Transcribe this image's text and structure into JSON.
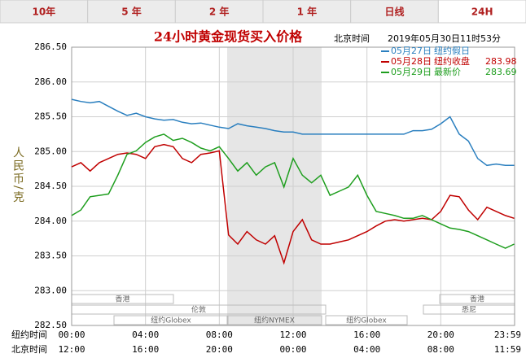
{
  "tabs": [
    "10年",
    "5 年",
    "2 年",
    "1 年",
    "日线",
    "24H"
  ],
  "chart_data": {
    "type": "line",
    "title": "24小时黄金现货买入价格",
    "timestamp_label": "北京时间",
    "timestamp": "2019年05月30日11时53分",
    "y_label": "人民币/克",
    "x_axis_labels": [
      "纽约时间",
      "北京时间"
    ],
    "xlim": [
      0,
      24
    ],
    "xticks": [
      {
        "value": 0,
        "label": "00:00"
      },
      {
        "value": 4,
        "label": "04:00"
      },
      {
        "value": 8,
        "label": "08:00"
      },
      {
        "value": 12,
        "label": "12:00"
      },
      {
        "value": 16,
        "label": "16:00"
      },
      {
        "value": 20,
        "label": "20:00"
      },
      {
        "value": 23.98,
        "label": "23:59"
      }
    ],
    "xtick_labels_beijing": [
      "12:00",
      "16:00",
      "20:00",
      "00:00",
      "04:00",
      "08:00",
      "11:59"
    ],
    "ylim": [
      282.5,
      286.5
    ],
    "yticks": [
      {
        "value": 282.5,
        "label": "282.50"
      },
      {
        "value": 283,
        "label": "283.00"
      },
      {
        "value": 283.5,
        "label": "283.50"
      },
      {
        "value": 284,
        "label": "284.00"
      },
      {
        "value": 284.5,
        "label": "284.50"
      },
      {
        "value": 285,
        "label": "285.00"
      },
      {
        "value": 285.5,
        "label": "285.50"
      },
      {
        "value": 286,
        "label": "286.00"
      },
      {
        "value": 286.5,
        "label": "286.50"
      }
    ],
    "grid": true,
    "session_labels": [
      "香港",
      "伦敦",
      "纽约Globex",
      "纽约NYMEX",
      "纽约Globex",
      "香港",
      "悉尼"
    ],
    "x": [
      0,
      0.5,
      1,
      1.5,
      2,
      2.5,
      3,
      3.5,
      4,
      4.5,
      5,
      5.5,
      6,
      6.5,
      7,
      7.5,
      8,
      8.5,
      9,
      9.5,
      10,
      10.5,
      11,
      11.5,
      12,
      12.5,
      13,
      13.5,
      14,
      14.5,
      15,
      15.5,
      16,
      16.5,
      17,
      17.5,
      18,
      18.5,
      19,
      19.5,
      20,
      20.5,
      21,
      21.5,
      22,
      22.5,
      23,
      23.5,
      23.98
    ],
    "series": [
      {
        "name": "05月27日",
        "note": "纽约假日",
        "color": "#2a7fbf",
        "values": [
          285.75,
          285.72,
          285.7,
          285.72,
          285.65,
          285.58,
          285.52,
          285.55,
          285.5,
          285.47,
          285.45,
          285.46,
          285.42,
          285.4,
          285.41,
          285.38,
          285.35,
          285.33,
          285.4,
          285.37,
          285.35,
          285.33,
          285.3,
          285.28,
          285.28,
          285.25,
          285.25,
          285.25,
          285.25,
          285.25,
          285.25,
          285.25,
          285.25,
          285.25,
          285.25,
          285.25,
          285.25,
          285.3,
          285.3,
          285.32,
          285.4,
          285.5,
          285.25,
          285.15,
          284.9,
          284.8,
          284.82,
          284.8,
          284.8
        ]
      },
      {
        "name": "05月28日",
        "note": "纽约收盘",
        "price": 283.98,
        "color": "#c00000",
        "values": [
          284.78,
          284.84,
          284.72,
          284.84,
          284.9,
          284.96,
          284.98,
          284.96,
          284.9,
          285.07,
          285.1,
          285.07,
          284.9,
          284.84,
          284.96,
          284.98,
          285.01,
          283.8,
          283.67,
          283.85,
          283.73,
          283.67,
          283.79,
          283.4,
          283.85,
          284.02,
          283.73,
          283.67,
          283.67,
          283.7,
          283.73,
          283.79,
          283.85,
          283.93,
          284.0,
          284.02,
          284.0,
          284.02,
          284.04,
          284.02,
          284.14,
          284.37,
          284.35,
          284.16,
          284.02,
          284.2,
          284.14,
          284.08,
          284.04
        ]
      },
      {
        "name": "05月29日",
        "note": "最新价",
        "price": 283.69,
        "color": "#1e9e1e",
        "values": [
          284.08,
          284.16,
          284.35,
          284.37,
          284.39,
          284.66,
          284.96,
          285.01,
          285.13,
          285.21,
          285.25,
          285.16,
          285.19,
          285.13,
          285.05,
          285.01,
          285.07,
          284.9,
          284.72,
          284.84,
          284.66,
          284.78,
          284.84,
          284.49,
          284.9,
          284.66,
          284.55,
          284.66,
          284.37,
          284.43,
          284.49,
          284.66,
          284.37,
          284.14,
          284.11,
          284.08,
          284.04,
          284.04,
          284.08,
          284.02,
          283.96,
          283.9,
          283.88,
          283.85,
          283.79,
          283.73,
          283.67,
          283.61,
          283.67
        ]
      }
    ]
  }
}
